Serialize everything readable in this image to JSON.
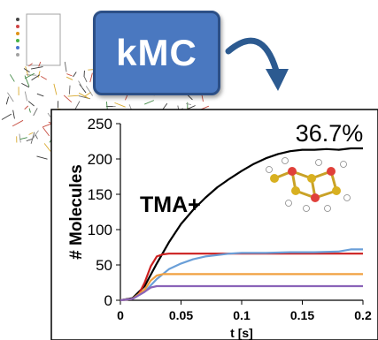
{
  "badge": {
    "label": "kMC"
  },
  "chart_data": {
    "type": "line",
    "title": "36.7%",
    "annotation": "TMA+",
    "xlabel": "t [s]",
    "ylabel": "# Molecules",
    "xlim": [
      0,
      0.2
    ],
    "ylim": [
      0,
      250
    ],
    "x_ticks": [
      "0",
      "0.05",
      "0.1",
      "0.15",
      "0.2"
    ],
    "y_ticks": [
      "0",
      "50",
      "100",
      "150",
      "200",
      "250"
    ],
    "grid": false,
    "legend": "none",
    "series": [
      {
        "color": "#000000",
        "x": [
          0,
          0.01,
          0.02,
          0.03,
          0.04,
          0.05,
          0.06,
          0.07,
          0.08,
          0.09,
          0.1,
          0.11,
          0.12,
          0.13,
          0.14,
          0.15,
          0.16,
          0.17,
          0.18,
          0.19,
          0.2
        ],
        "y": [
          0,
          3,
          20,
          52,
          82,
          108,
          128,
          145,
          160,
          172,
          183,
          193,
          201,
          207,
          211,
          213,
          213,
          214,
          213,
          215,
          215
        ]
      },
      {
        "color": "#cc1f1f",
        "x": [
          0,
          0.01,
          0.015,
          0.02,
          0.025,
          0.03,
          0.035,
          0.04,
          0.06,
          0.1,
          0.15,
          0.2
        ],
        "y": [
          0,
          2,
          8,
          25,
          48,
          62,
          65,
          66,
          66,
          66,
          66,
          66
        ]
      },
      {
        "color": "#6a9fd8",
        "x": [
          0,
          0.01,
          0.02,
          0.03,
          0.04,
          0.05,
          0.06,
          0.07,
          0.08,
          0.09,
          0.1,
          0.12,
          0.14,
          0.16,
          0.18,
          0.19,
          0.2
        ],
        "y": [
          0,
          2,
          12,
          30,
          44,
          52,
          58,
          62,
          64,
          66,
          67,
          67,
          68,
          68,
          69,
          72,
          72
        ]
      },
      {
        "color": "#f0a040",
        "x": [
          0,
          0.01,
          0.02,
          0.025,
          0.03,
          0.035,
          0.04,
          0.06,
          0.1,
          0.15,
          0.2
        ],
        "y": [
          0,
          2,
          15,
          28,
          35,
          37,
          37,
          37,
          37,
          37,
          37
        ]
      },
      {
        "color": "#8a63b8",
        "x": [
          0,
          0.01,
          0.02,
          0.025,
          0.03,
          0.04,
          0.06,
          0.1,
          0.15,
          0.2
        ],
        "y": [
          0,
          2,
          12,
          18,
          20,
          20,
          20,
          20,
          20,
          20
        ]
      }
    ]
  }
}
